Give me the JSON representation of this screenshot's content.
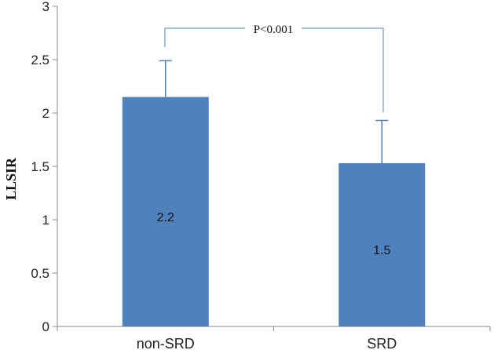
{
  "chart_data": {
    "type": "bar",
    "categories": [
      "non-SRD",
      "SRD"
    ],
    "values": [
      2.15,
      1.53
    ],
    "value_labels": [
      "2.2",
      "1.5"
    ],
    "error_upper": [
      2.49,
      1.93
    ],
    "ylabel": "LLSIR",
    "ylim": [
      0,
      3
    ],
    "yticks": [
      "0",
      "0.5",
      "1",
      "1.5",
      "2",
      "2.5",
      "3"
    ],
    "ytick_values": [
      0,
      0.5,
      1,
      1.5,
      2,
      2.5,
      3
    ],
    "annotation": "P<0.001",
    "bar_color": "#4f81bd",
    "grid": false
  }
}
